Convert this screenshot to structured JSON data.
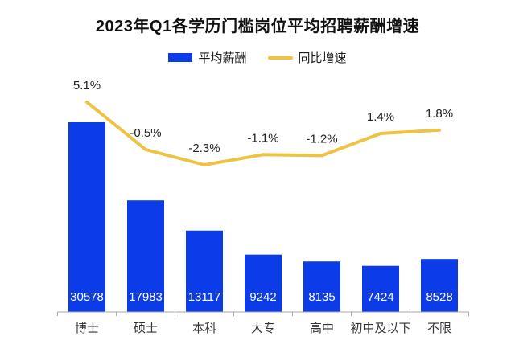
{
  "title": "2023年Q1各学历门槛岗位平均招聘薪酬增速",
  "legend": {
    "salary_label": "平均薪酬",
    "growth_label": "同比增速"
  },
  "colors": {
    "bar": "#0b3ce8",
    "line": "#eec344",
    "axis": "#a8a8a8",
    "label_text": "#222222",
    "bar_value_text": "#ffffff",
    "category_text": "#333333",
    "title_text": "#111111"
  },
  "chart_data": {
    "type": "bar+line",
    "title": "2023年Q1各学历门槛岗位平均招聘薪酬增速",
    "categories": [
      "博士",
      "硕士",
      "本科",
      "大专",
      "高中",
      "初中及以下",
      "不限"
    ],
    "series": [
      {
        "name": "平均薪酬",
        "type": "bar",
        "color": "#0b3ce8",
        "values": [
          30578,
          17983,
          13117,
          9242,
          8135,
          7424,
          8528
        ]
      },
      {
        "name": "同比增速",
        "type": "line",
        "color": "#eec344",
        "values": [
          5.1,
          -0.5,
          -2.3,
          -1.1,
          -1.2,
          1.4,
          1.8
        ],
        "labels": [
          "5.1%",
          "-0.5%",
          "-2.3%",
          "-1.1%",
          "-1.2%",
          "1.4%",
          "1.8%"
        ]
      }
    ],
    "value_labels_shown": true,
    "grid": false,
    "legend_position": "top",
    "y_axis_shown": false
  }
}
